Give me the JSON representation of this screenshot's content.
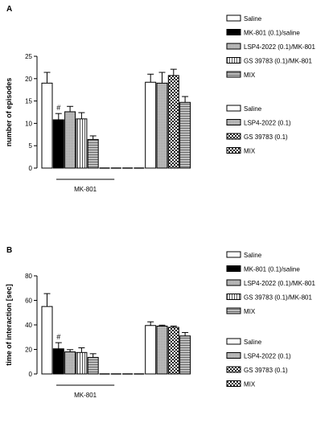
{
  "chart_data": [
    {
      "type": "bar",
      "panel_label": "A",
      "ylabel": "number of episodes",
      "xlabel": "",
      "ylim": [
        0,
        25
      ],
      "yticks": [
        0,
        5,
        10,
        15,
        20,
        25
      ],
      "grid": false,
      "group_label": "MK-801",
      "annotation": "#",
      "annotation_bar": 1,
      "bars": [
        {
          "value": 19.0,
          "err": 2.4,
          "pattern": "open"
        },
        {
          "value": 10.8,
          "err": 1.4,
          "pattern": "black"
        },
        {
          "value": 12.6,
          "err": 1.2,
          "pattern": "gray"
        },
        {
          "value": 11.0,
          "err": 1.4,
          "pattern": "hstripe"
        },
        {
          "value": 6.4,
          "err": 0.8,
          "pattern": "mix"
        },
        {
          "value": 0,
          "err": 0,
          "pattern": "open"
        },
        {
          "value": 0,
          "err": 0,
          "pattern": "open"
        },
        {
          "value": 0,
          "err": 0,
          "pattern": "open"
        },
        {
          "value": 0,
          "err": 0,
          "pattern": "open"
        },
        {
          "value": 19.2,
          "err": 1.8,
          "pattern": "open"
        },
        {
          "value": 19.0,
          "err": 2.4,
          "pattern": "gray"
        },
        {
          "value": 20.7,
          "err": 1.4,
          "pattern": "check"
        },
        {
          "value": 14.7,
          "err": 1.3,
          "pattern": "mix"
        }
      ],
      "legend_top": [
        {
          "label": "Saline",
          "pattern": "open"
        },
        {
          "label": "MK-801 (0.1)/saline",
          "pattern": "black"
        },
        {
          "label": "LSP4-2022 (0.1)/MK-801",
          "pattern": "gray"
        },
        {
          "label": "GS 39783 (0.1)/MK-801",
          "pattern": "hstripe"
        },
        {
          "label": "MIX",
          "pattern": "mix"
        }
      ],
      "legend_bottom": [
        {
          "label": "Saline",
          "pattern": "open"
        },
        {
          "label": "LSP4-2022 (0.1)",
          "pattern": "gray"
        },
        {
          "label": "GS 39783 (0.1)",
          "pattern": "check"
        },
        {
          "label": "MIX",
          "pattern": "check"
        }
      ]
    },
    {
      "type": "bar",
      "panel_label": "B",
      "ylabel": "time of interaction [sec]",
      "xlabel": "",
      "ylim": [
        0,
        80
      ],
      "yticks": [
        0,
        20,
        40,
        60,
        80
      ],
      "grid": false,
      "group_label": "MK-801",
      "annotation": "#",
      "annotation_bar": 1,
      "bars": [
        {
          "value": 55.0,
          "err": 10.5,
          "pattern": "open"
        },
        {
          "value": 20.5,
          "err": 5.0,
          "pattern": "black"
        },
        {
          "value": 18.0,
          "err": 1.8,
          "pattern": "gray"
        },
        {
          "value": 17.5,
          "err": 3.8,
          "pattern": "hstripe"
        },
        {
          "value": 13.5,
          "err": 3.0,
          "pattern": "mix"
        },
        {
          "value": 0,
          "err": 0,
          "pattern": "open"
        },
        {
          "value": 0,
          "err": 0,
          "pattern": "open"
        },
        {
          "value": 0,
          "err": 0,
          "pattern": "open"
        },
        {
          "value": 0,
          "err": 0,
          "pattern": "open"
        },
        {
          "value": 39.5,
          "err": 3.0,
          "pattern": "open"
        },
        {
          "value": 39.0,
          "err": 0.8,
          "pattern": "gray"
        },
        {
          "value": 38.0,
          "err": 1.0,
          "pattern": "check"
        },
        {
          "value": 31.0,
          "err": 2.8,
          "pattern": "mix"
        }
      ],
      "legend_top": [
        {
          "label": "Saline",
          "pattern": "open"
        },
        {
          "label": "MK-801 (0.1)/saline",
          "pattern": "black"
        },
        {
          "label": "LSP4-2022 (0.1)/MK-801",
          "pattern": "gray"
        },
        {
          "label": "GS 39783 (0.1)/MK-801",
          "pattern": "hstripe"
        },
        {
          "label": "MIX",
          "pattern": "mix"
        }
      ],
      "legend_bottom": [
        {
          "label": "Saline",
          "pattern": "open"
        },
        {
          "label": "LSP4-2022 (0.1)",
          "pattern": "gray"
        },
        {
          "label": "GS 39783 (0.1)",
          "pattern": "check"
        },
        {
          "label": "MIX",
          "pattern": "check"
        }
      ]
    }
  ]
}
